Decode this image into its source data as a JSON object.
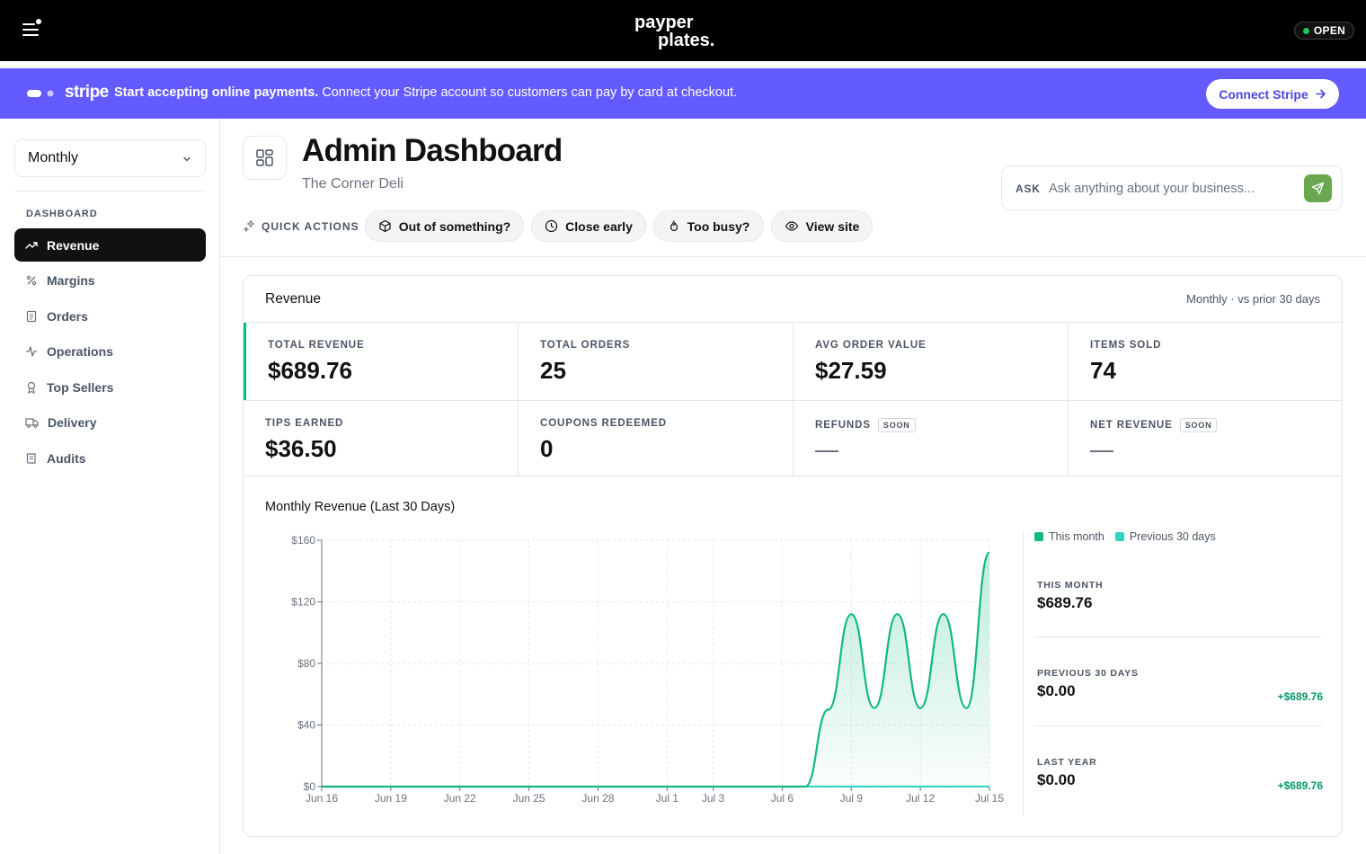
{
  "topbar": {
    "logo_line1": "payper",
    "logo_line2": "plates.",
    "status": "OPEN",
    "status_color": "#22c55e"
  },
  "banner": {
    "brand": "stripe",
    "headline": "Start accepting online payments.",
    "message": "Connect your Stripe account so customers can pay by card at checkout.",
    "button": "Connect Stripe",
    "background": "#635bff"
  },
  "sidebar": {
    "period": "Monthly",
    "section": "DASHBOARD",
    "items": [
      {
        "label": "Revenue",
        "icon": "trending-up-icon",
        "active": true
      },
      {
        "label": "Margins",
        "icon": "percent-icon",
        "active": false
      },
      {
        "label": "Orders",
        "icon": "receipt-icon",
        "active": false
      },
      {
        "label": "Operations",
        "icon": "activity-icon",
        "active": false
      },
      {
        "label": "Top Sellers",
        "icon": "award-icon",
        "active": false
      },
      {
        "label": "Delivery",
        "icon": "truck-icon",
        "active": false
      },
      {
        "label": "Audits",
        "icon": "scroll-icon",
        "active": false
      }
    ]
  },
  "header": {
    "title": "Admin Dashboard",
    "subtitle": "The Corner Deli"
  },
  "ask": {
    "label": "ASK",
    "placeholder": "Ask anything about your business..."
  },
  "quick_actions": {
    "label": "QUICK ACTIONS",
    "buttons": [
      {
        "label": "Out of something?",
        "icon": "box-icon"
      },
      {
        "label": "Close early",
        "icon": "clock-icon"
      },
      {
        "label": "Too busy?",
        "icon": "flame-icon"
      },
      {
        "label": "View site",
        "icon": "eye-icon"
      }
    ]
  },
  "revenue_card": {
    "title": "Revenue",
    "meta": "Monthly · vs prior 30 days",
    "metrics": [
      {
        "label": "TOTAL REVENUE",
        "value": "$689.76",
        "soon": ""
      },
      {
        "label": "TOTAL ORDERS",
        "value": "25",
        "soon": ""
      },
      {
        "label": "AVG ORDER VALUE",
        "value": "$27.59",
        "soon": ""
      },
      {
        "label": "ITEMS SOLD",
        "value": "74",
        "soon": ""
      },
      {
        "label": "TIPS EARNED",
        "value": "$36.50",
        "soon": ""
      },
      {
        "label": "COUPONS REDEEMED",
        "value": "0",
        "soon": ""
      },
      {
        "label": "REFUNDS",
        "value": "—",
        "soon": "SOON"
      },
      {
        "label": "NET REVENUE",
        "value": "—",
        "soon": "SOON"
      }
    ],
    "chart_title": "Monthly Revenue (Last 30 Days)",
    "legend": [
      {
        "name": "This month",
        "color": "#10b981"
      },
      {
        "name": "Previous 30 days",
        "color": "#2dd4bf"
      }
    ],
    "comparisons": [
      {
        "label": "THIS MONTH",
        "value": "$689.76",
        "delta": ""
      },
      {
        "label": "PREVIOUS 30 DAYS",
        "value": "$0.00",
        "delta": "+$689.76"
      },
      {
        "label": "LAST YEAR",
        "value": "$0.00",
        "delta": "+$689.76"
      }
    ]
  },
  "chart_data": {
    "type": "area",
    "title": "Monthly Revenue (Last 30 Days)",
    "x": [
      "Jun 16",
      "Jun 17",
      "Jun 18",
      "Jun 19",
      "Jun 20",
      "Jun 21",
      "Jun 22",
      "Jun 23",
      "Jun 24",
      "Jun 25",
      "Jun 26",
      "Jun 27",
      "Jun 28",
      "Jun 29",
      "Jun 30",
      "Jul 1",
      "Jul 2",
      "Jul 3",
      "Jul 4",
      "Jul 5",
      "Jul 6",
      "Jul 7",
      "Jul 8",
      "Jul 9",
      "Jul 10",
      "Jul 11",
      "Jul 12",
      "Jul 13",
      "Jul 14",
      "Jul 15"
    ],
    "x_ticks": [
      "Jun 16",
      "Jun 19",
      "Jun 22",
      "Jun 25",
      "Jun 28",
      "Jul 1",
      "Jul 3",
      "Jul 6",
      "Jul 9",
      "Jul 12",
      "Jul 15"
    ],
    "series": [
      {
        "name": "This month",
        "color": "#10b981",
        "values": [
          0,
          0,
          0,
          0,
          0,
          0,
          0,
          0,
          0,
          0,
          0,
          0,
          0,
          0,
          0,
          0,
          0,
          0,
          0,
          0,
          0,
          0,
          50,
          112,
          51,
          112,
          51,
          112,
          51,
          152
        ]
      },
      {
        "name": "Previous 30 days",
        "color": "#2dd4bf",
        "values": [
          0,
          0,
          0,
          0,
          0,
          0,
          0,
          0,
          0,
          0,
          0,
          0,
          0,
          0,
          0,
          0,
          0,
          0,
          0,
          0,
          0,
          0,
          0,
          0,
          0,
          0,
          0,
          0,
          0,
          0
        ]
      }
    ],
    "y_ticks": [
      "$0",
      "$40",
      "$80",
      "$120",
      "$160"
    ],
    "ylim": [
      0,
      160
    ],
    "grid": true,
    "legend_position": "right"
  }
}
